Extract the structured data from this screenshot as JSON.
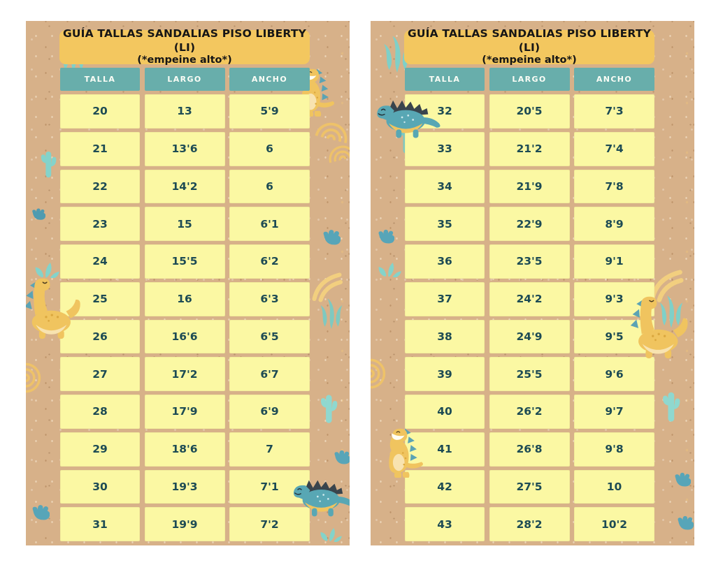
{
  "page": {
    "background": "#ffffff",
    "description": "Sandal size guide sheet, two kraft panels"
  },
  "columns": [
    "TALLA",
    "LARGO",
    "ANCHO"
  ],
  "panels": [
    {
      "title": "GUÍA TALLAS SANDALIAS PISO LIBERTY (LI)",
      "subtitle": "(*empeine alto*)",
      "rows": [
        [
          "20",
          "13",
          "5'9"
        ],
        [
          "21",
          "13'6",
          "6"
        ],
        [
          "22",
          "14'2",
          "6"
        ],
        [
          "23",
          "15",
          "6'1"
        ],
        [
          "24",
          "15'5",
          "6'2"
        ],
        [
          "25",
          "16",
          "6'3"
        ],
        [
          "26",
          "16'6",
          "6'5"
        ],
        [
          "27",
          "17'2",
          "6'7"
        ],
        [
          "28",
          "17'9",
          "6'9"
        ],
        [
          "29",
          "18'6",
          "7"
        ],
        [
          "30",
          "19'3",
          "7'1"
        ],
        [
          "31",
          "19'9",
          "7'2"
        ]
      ]
    },
    {
      "title": "GUÍA TALLAS SANDALIAS PISO LIBERTY (LI)",
      "subtitle": "(*empeine alto*)",
      "rows": [
        [
          "32",
          "20'5",
          "7'3"
        ],
        [
          "33",
          "21'2",
          "7'4"
        ],
        [
          "34",
          "21'9",
          "7'8"
        ],
        [
          "35",
          "22'9",
          "8'9"
        ],
        [
          "36",
          "23'5",
          "9'1"
        ],
        [
          "37",
          "24'2",
          "9'3"
        ],
        [
          "38",
          "24'9",
          "9'5"
        ],
        [
          "39",
          "25'5",
          "9'6"
        ],
        [
          "40",
          "26'2",
          "9'7"
        ],
        [
          "41",
          "26'8",
          "9'8"
        ],
        [
          "42",
          "27'5",
          "10"
        ],
        [
          "43",
          "28'2",
          "10'2"
        ]
      ]
    }
  ],
  "colors": {
    "kraft": "#d7b189",
    "banner_yellow": "#f3c75f",
    "header_teal": "#68aeab",
    "cell_yellow": "#fbf8a3",
    "cell_text": "#1d4b54",
    "title_text": "#161616",
    "header_text": "#fbfdf6",
    "deco_teal_light": "#7fd0c8",
    "deco_teal": "#57a5b8",
    "deco_navy": "#39444d",
    "deco_yellow": "#f0c45f"
  },
  "icons": {
    "trex-dino-icon": "yellow t-rex dinosaur",
    "bronto-dino-icon": "yellow long-neck dinosaur",
    "blue-dino-icon": "blue spiky dinosaur",
    "cactus-icon": "cactus",
    "seaweed-icon": "seaweed blades",
    "footprint-icon": "dinosaur footprint",
    "arcs-icon": "doodle arc swirls",
    "plant-icon": "leafy plant",
    "waves-icon": "wavy doodle lines"
  }
}
